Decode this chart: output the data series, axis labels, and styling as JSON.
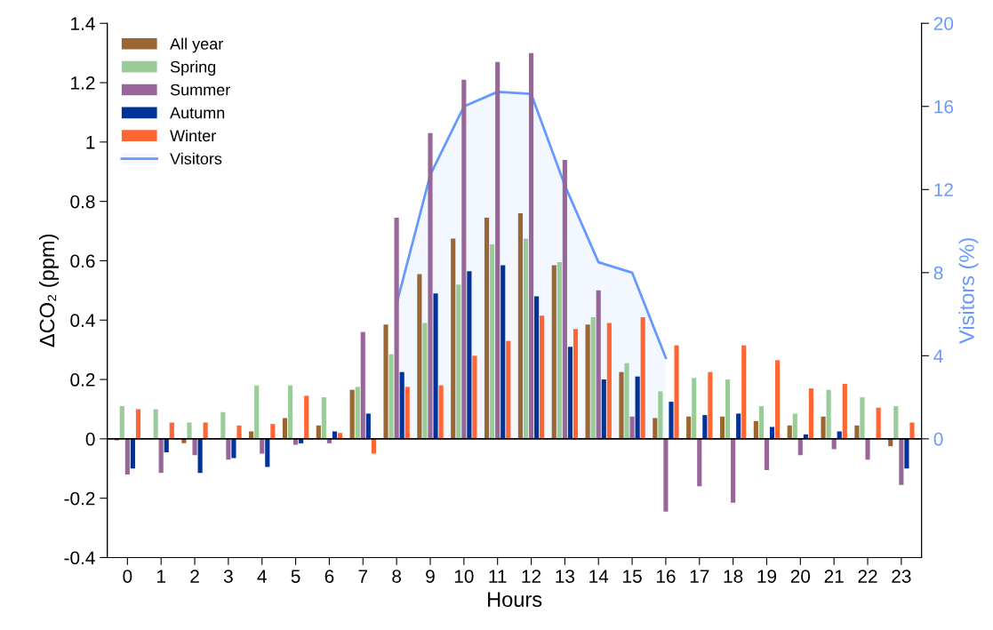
{
  "chart_data": {
    "type": "bar",
    "xlabel": "Hours",
    "ylabel": "ΔCO₂ (ppm)",
    "y2label": "Visitors (%)",
    "categories": [
      "0",
      "1",
      "2",
      "3",
      "4",
      "5",
      "6",
      "7",
      "8",
      "9",
      "10",
      "11",
      "12",
      "13",
      "14",
      "15",
      "16",
      "17",
      "18",
      "19",
      "20",
      "21",
      "22",
      "23"
    ],
    "series": [
      {
        "name": "All year",
        "color": "#9a6633",
        "values": [
          -0.005,
          null,
          -0.015,
          0,
          0.025,
          0.07,
          0.045,
          0.165,
          0.385,
          0.555,
          0.675,
          0.745,
          0.76,
          0.585,
          0.385,
          0.225,
          0.07,
          0.075,
          0.075,
          0.06,
          0.045,
          0.075,
          0.045,
          -0.025
        ]
      },
      {
        "name": "Spring",
        "color": "#99cc99",
        "values": [
          0.11,
          0.1,
          0.055,
          0.09,
          0.18,
          0.18,
          0.14,
          0.175,
          0.285,
          0.39,
          0.52,
          0.655,
          0.675,
          0.595,
          0.41,
          0.255,
          0.16,
          0.205,
          0.2,
          0.11,
          0.085,
          0.165,
          0.14,
          0.11
        ]
      },
      {
        "name": "Summer",
        "color": "#996699",
        "values": [
          -0.12,
          -0.115,
          -0.055,
          -0.07,
          -0.05,
          -0.02,
          -0.015,
          0.36,
          0.745,
          1.03,
          1.21,
          1.27,
          1.3,
          0.94,
          0.5,
          0.075,
          -0.245,
          -0.16,
          -0.215,
          -0.105,
          -0.055,
          -0.035,
          -0.07,
          -0.155
        ]
      },
      {
        "name": "Autumn",
        "color": "#003399",
        "values": [
          -0.1,
          -0.045,
          -0.115,
          -0.065,
          -0.095,
          -0.015,
          0.025,
          0.085,
          0.225,
          0.49,
          0.565,
          0.585,
          0.48,
          0.31,
          0.2,
          0.21,
          0.125,
          0.08,
          0.085,
          0.04,
          0.015,
          0.025,
          0.0,
          -0.1
        ]
      },
      {
        "name": "Winter",
        "color": "#ff6633",
        "values": [
          0.1,
          0.055,
          0.055,
          0.045,
          0.05,
          0.145,
          0.02,
          -0.05,
          0.175,
          0.18,
          0.28,
          0.33,
          0.415,
          0.37,
          0.39,
          0.41,
          0.315,
          0.225,
          0.315,
          0.265,
          0.17,
          0.185,
          0.105,
          0.055
        ]
      },
      {
        "name": "Visitors",
        "type": "area",
        "axis": "y2",
        "color": "#6699ff",
        "values": [
          null,
          null,
          null,
          null,
          null,
          null,
          null,
          null,
          6.5,
          12.7,
          16.0,
          16.7,
          16.6,
          12.2,
          8.5,
          8.0,
          3.9,
          null,
          null,
          null,
          null,
          null,
          null,
          null
        ]
      }
    ],
    "ylim": [
      -0.4,
      1.4
    ],
    "yticks": [
      {
        "value": -0.4,
        "label": "-0.4"
      },
      {
        "value": -0.2,
        "label": "-0.2"
      },
      0,
      0.2,
      0.4,
      0.6,
      0.8,
      1,
      1.2,
      1.4
    ],
    "y2lim": [
      -5.714,
      20
    ],
    "y2ticks": [
      0,
      4,
      8,
      12,
      16,
      20
    ],
    "ref_lines": [
      {
        "axis": "y",
        "value": 0,
        "color": "#000000"
      }
    ],
    "legend": "top left",
    "grid": false
  }
}
